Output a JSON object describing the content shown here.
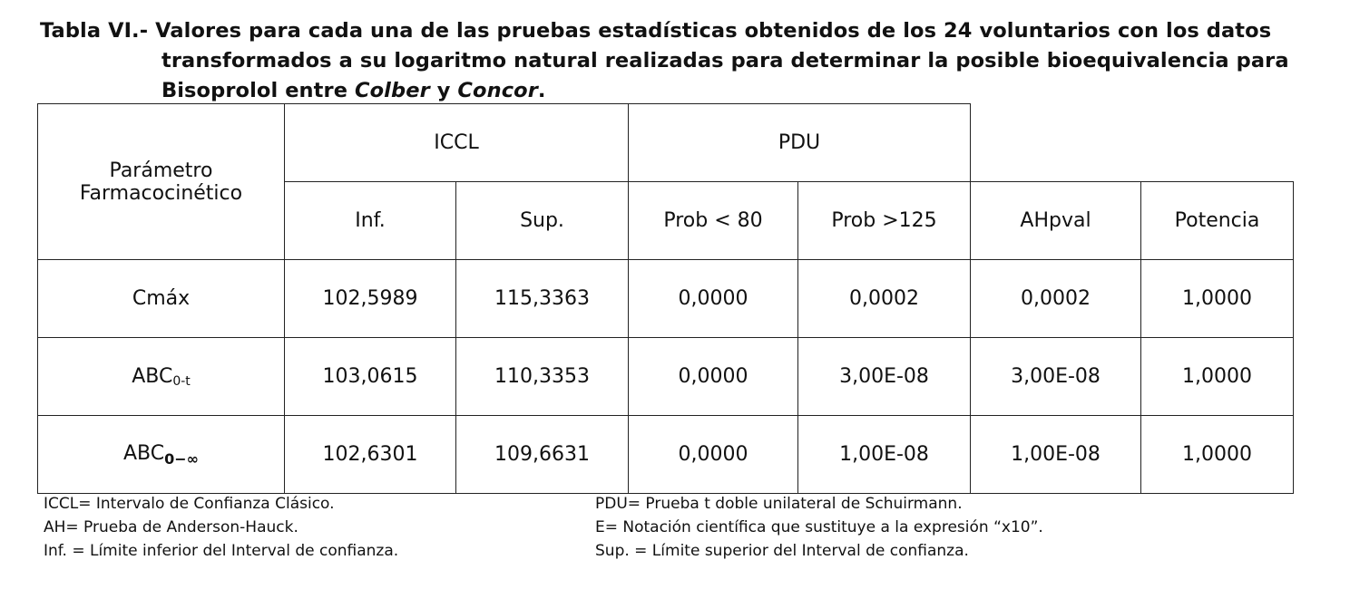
{
  "caption": {
    "label": "Tabla VI.-",
    "line1": "Valores para cada una de las pruebas estadísticas obtenidos de los 24 voluntarios con los datos",
    "line2": "transformados a su logaritmo natural realizadas para determinar la posible bioequivalencia para",
    "line3_prefix": "Bisoprolol entre ",
    "brand1": "Colber",
    "line3_mid": " y ",
    "brand2": "Concor",
    "line3_end": "."
  },
  "table": {
    "param_header_line1": "Parámetro",
    "param_header_line2": "Farmacocinético",
    "group_iccl": "ICCL",
    "group_pdu": "PDU",
    "columns": [
      "Inf.",
      "Sup.",
      "Prob < 80",
      "Prob >125",
      "AHpval",
      "Potencia"
    ],
    "rows": [
      {
        "param_base": "Cmáx",
        "param_sub": "",
        "values": [
          "102,5989",
          "115,3363",
          "0,0000",
          "0,0002",
          "0,0002",
          "1,0000"
        ]
      },
      {
        "param_base": "ABC",
        "param_sub": "0-t",
        "values": [
          "103,0615",
          "110,3353",
          "0,0000",
          "3,00E-08",
          "3,00E-08",
          "1,0000"
        ]
      },
      {
        "param_base": "ABC",
        "param_sub": "0−∞",
        "values": [
          "102,6301",
          "109,6631",
          "0,0000",
          "1,00E-08",
          "1,00E-08",
          "1,0000"
        ]
      }
    ]
  },
  "notes": {
    "left": [
      "ICCL= Intervalo de Confianza Clásico.",
      "AH= Prueba de Anderson-Hauck.",
      "Inf. = Límite inferior del Interval de confianza."
    ],
    "right": [
      "PDU= Prueba t doble unilateral de Schuirmann.",
      "E= Notación científica que sustituye a la expresión “x10”.",
      "Sup. = Límite superior del Interval de confianza."
    ]
  }
}
